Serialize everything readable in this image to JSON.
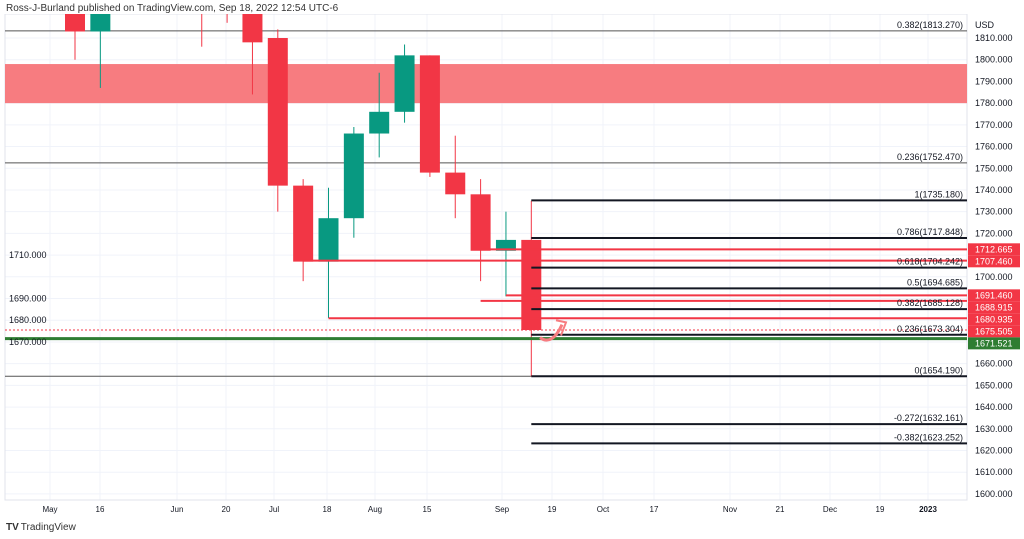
{
  "header": {
    "publisher": "Ross-J-Burland published on TradingView.com, Sep 18, 2022 12:54 UTC-6"
  },
  "brand": {
    "logo": "TV",
    "name": "TradingView"
  },
  "colors": {
    "up": "#089981",
    "down": "#f23645",
    "zone": "#f77c80",
    "support": "#2e7d32",
    "fib": "#131722"
  },
  "chart_data": {
    "type": "candlestick",
    "currency": "USD",
    "ylim": [
      1595,
      1822
    ],
    "yticks": [
      1600,
      1610,
      1620,
      1630,
      1640,
      1650,
      1660,
      1670,
      1680,
      1690,
      1700,
      1710,
      1720,
      1730,
      1740,
      1750,
      1760,
      1770,
      1780,
      1790,
      1800,
      1810
    ],
    "xticks": [
      "May",
      "16",
      "Jun",
      "20",
      "Jul",
      "18",
      "Aug",
      "15",
      "Sep",
      "19",
      "Oct",
      "17",
      "Nov",
      "21",
      "Dec",
      "19",
      "2023"
    ],
    "candles": [
      {
        "i": 0,
        "o": 1830,
        "h": 1835,
        "l": 1800,
        "c": 1813
      },
      {
        "i": 1,
        "o": 1813,
        "h": 1835,
        "l": 1787,
        "c": 1830
      },
      {
        "i": 5,
        "o": 1840,
        "h": 1845,
        "l": 1806,
        "c": 1825
      },
      {
        "i": 6,
        "o": 1840,
        "h": 1845,
        "l": 1817,
        "c": 1830
      },
      {
        "i": 7,
        "o": 1830,
        "h": 1835,
        "l": 1784,
        "c": 1808
      },
      {
        "i": 8,
        "o": 1810,
        "h": 1814,
        "l": 1730,
        "c": 1742
      },
      {
        "i": 9,
        "o": 1742,
        "h": 1745,
        "l": 1698,
        "c": 1707
      },
      {
        "i": 10,
        "o": 1707,
        "h": 1741,
        "l": 1681,
        "c": 1727
      },
      {
        "i": 11,
        "o": 1727,
        "h": 1769,
        "l": 1718,
        "c": 1766
      },
      {
        "i": 12,
        "o": 1766,
        "h": 1794,
        "l": 1755,
        "c": 1776
      },
      {
        "i": 13,
        "o": 1776,
        "h": 1807,
        "l": 1771,
        "c": 1802
      },
      {
        "i": 14,
        "o": 1802,
        "h": 1802,
        "l": 1746,
        "c": 1748
      },
      {
        "i": 15,
        "o": 1748,
        "h": 1765,
        "l": 1727,
        "c": 1738
      },
      {
        "i": 16,
        "o": 1738,
        "h": 1745,
        "l": 1698,
        "c": 1712
      },
      {
        "i": 17,
        "o": 1712,
        "h": 1730,
        "l": 1691,
        "c": 1717
      },
      {
        "i": 18,
        "o": 1717,
        "h": 1735,
        "l": 1654,
        "c": 1675.5
      }
    ],
    "zone": [
      1780,
      1798
    ],
    "fib_full": [
      {
        "label": "0.382(1813.270)",
        "value": 1813.27
      },
      {
        "label": "0.236(1752.470)",
        "value": 1752.47
      }
    ],
    "fib": [
      {
        "label": "1(1735.180)",
        "value": 1735.18
      },
      {
        "label": "0.786(1717.848)",
        "value": 1717.848
      },
      {
        "label": "0.618(1704.242)",
        "value": 1704.242
      },
      {
        "label": "0.5(1694.685)",
        "value": 1694.685
      },
      {
        "label": "0.382(1685.128)",
        "value": 1685.128
      },
      {
        "label": "0.236(1673.304)",
        "value": 1673.304
      },
      {
        "label": "0(1654.190)",
        "value": 1654.19
      },
      {
        "label": "-0.272(1632.161)",
        "value": 1632.161
      },
      {
        "label": "-0.382(1623.252)",
        "value": 1623.252
      }
    ],
    "levels": [
      {
        "label": "1712.665",
        "value": 1712.665,
        "from": 16
      },
      {
        "label": "1707.460",
        "value": 1707.46,
        "from": 9
      },
      {
        "label": "1691.460",
        "value": 1691.46,
        "from": 17
      },
      {
        "label": "1688.915",
        "value": 1688.915,
        "from": 16
      },
      {
        "label": "1680.935",
        "value": 1680.935,
        "from": 10
      },
      {
        "label": "1675.505",
        "value": 1675.505,
        "from": -3
      }
    ],
    "support": {
      "label": "1671.521",
      "value": 1671.521
    }
  }
}
